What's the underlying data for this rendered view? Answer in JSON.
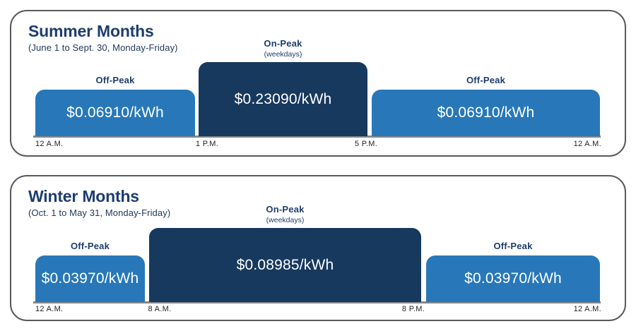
{
  "colors": {
    "off_peak": "#2878b9",
    "on_peak": "#17395e",
    "navy_text": "#1e3d6e",
    "subtitle_text": "#233a5c",
    "time_text": "#231f20",
    "panel_border": "#58595b",
    "baseline": "#85878a"
  },
  "chart_data": [
    {
      "type": "bar",
      "title": "Summer Months",
      "subtitle": "(June 1 to Sept. 30, Monday-Friday)",
      "unit": "$/kWh",
      "segments": [
        {
          "period": "Off-Peak",
          "rate_text": "$0.06910/kWh",
          "rate_value": 0.0691,
          "start": "12 A.M.",
          "end": "1 P.M."
        },
        {
          "period": "On-Peak",
          "note": "(weekdays)",
          "rate_text": "$0.23090/kWh",
          "rate_value": 0.2309,
          "start": "1 P.M.",
          "end": "5 P.M."
        },
        {
          "period": "Off-Peak",
          "rate_text": "$0.06910/kWh",
          "rate_value": 0.0691,
          "start": "5 P.M.",
          "end": "12 A.M."
        }
      ],
      "timeline": [
        "12 A.M.",
        "1 P.M.",
        "5 P.M.",
        "12 A.M."
      ],
      "layout": {
        "legend": "none",
        "grid": false,
        "bar_style": "rounded-top"
      }
    },
    {
      "type": "bar",
      "title": "Winter Months",
      "subtitle": "(Oct. 1 to May 31, Monday-Friday)",
      "unit": "$/kWh",
      "segments": [
        {
          "period": "Off-Peak",
          "rate_text": "$0.03970/kWh",
          "rate_value": 0.0397,
          "start": "12 A.M.",
          "end": "8 A.M."
        },
        {
          "period": "On-Peak",
          "note": "(weekdays)",
          "rate_text": "$0.08985/kWh",
          "rate_value": 0.08985,
          "start": "8 A.M.",
          "end": "8 P.M."
        },
        {
          "period": "Off-Peak",
          "rate_text": "$0.03970/kWh",
          "rate_value": 0.0397,
          "start": "8 P.M.",
          "end": "12 A.M."
        }
      ],
      "timeline": [
        "12 A.M.",
        "8 A.M.",
        "8 P.M.",
        "12 A.M."
      ],
      "layout": {
        "legend": "none",
        "grid": false,
        "bar_style": "rounded-top"
      }
    }
  ]
}
